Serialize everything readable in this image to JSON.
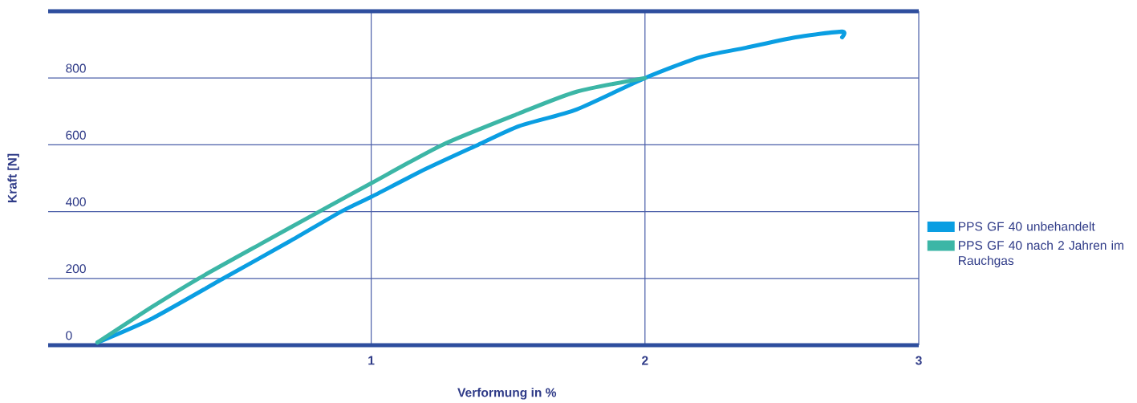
{
  "chart_data": {
    "type": "line",
    "xlabel": "Verformung in %",
    "ylabel": "Kraft [N]",
    "xlim": [
      -0.18,
      3
    ],
    "ylim": [
      0,
      1000
    ],
    "xticks": [
      1,
      2,
      3
    ],
    "yticks": [
      0,
      200,
      400,
      600,
      800
    ],
    "grid": true,
    "legend": "right",
    "marker": "none",
    "line_style": "solid",
    "series": [
      {
        "name": "PPS GF 40 unbehandelt",
        "color": "#0a9ee2",
        "x": [
          0,
          0.2,
          0.46,
          0.7,
          0.89,
          1,
          1.2,
          1.39,
          1.54,
          1.75,
          2,
          2.2,
          2.37,
          2.55,
          2.72,
          2.72
        ],
        "values": [
          8,
          80,
          200,
          310,
          400,
          444,
          528,
          600,
          656,
          706,
          800,
          862,
          891,
          922,
          939,
          922
        ]
      },
      {
        "name": "PPS GF 40 nach 2 Jahren im Rauchgas",
        "color": "#3cb6a6",
        "x": [
          0,
          0.2,
          0.37,
          0.6,
          0.81,
          1,
          1.26,
          1.54,
          1.75,
          2
        ],
        "values": [
          8,
          115,
          200,
          305,
          400,
          485,
          600,
          694,
          759,
          800
        ]
      }
    ]
  }
}
